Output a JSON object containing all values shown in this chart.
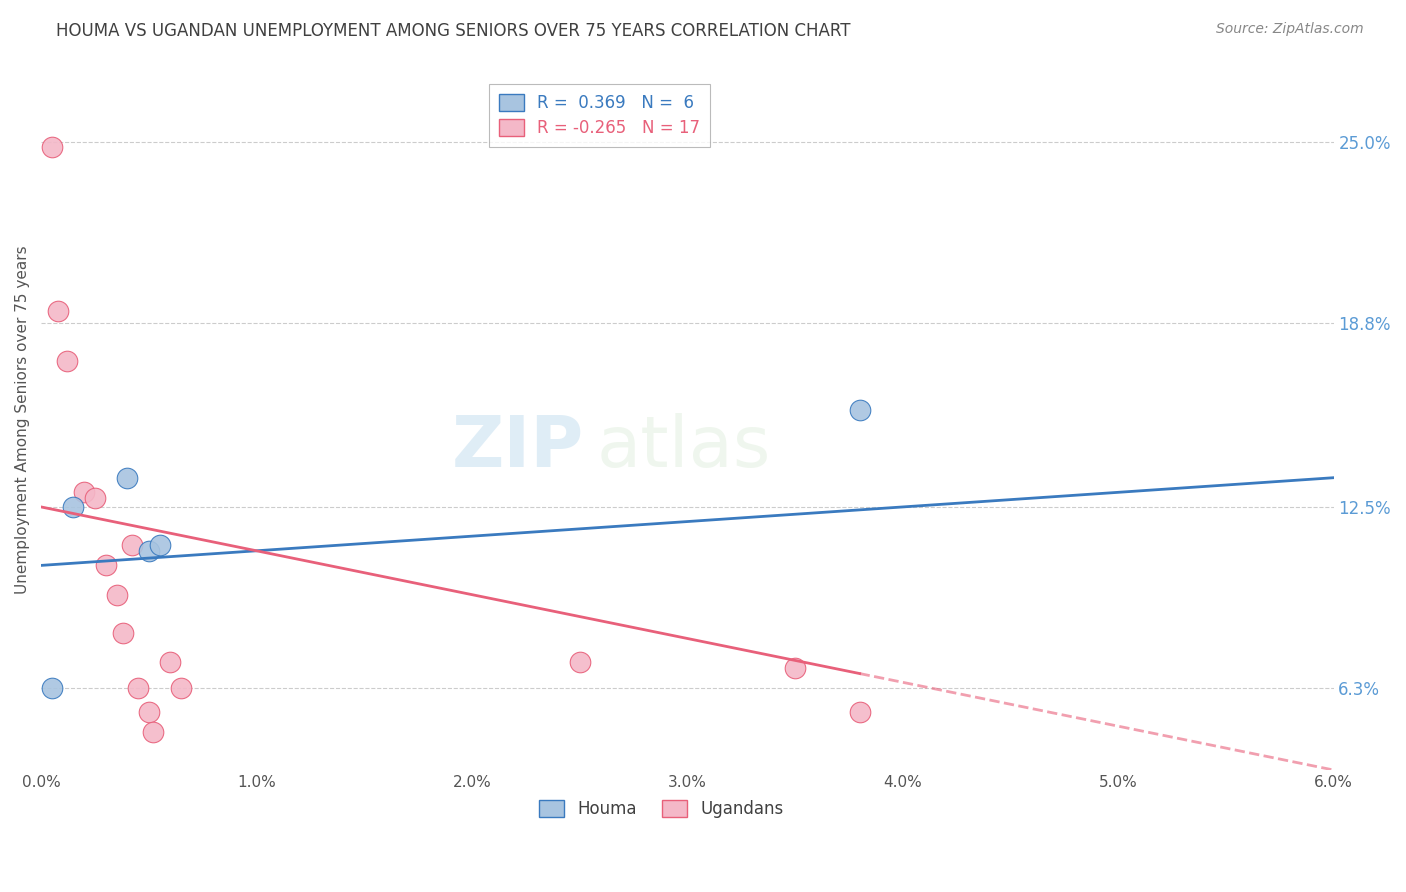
{
  "title": "HOUMA VS UGANDAN UNEMPLOYMENT AMONG SENIORS OVER 75 YEARS CORRELATION CHART",
  "source": "Source: ZipAtlas.com",
  "ylabel": "Unemployment Among Seniors over 75 years",
  "xlabel_ticks": [
    "0.0%",
    "1.0%",
    "2.0%",
    "3.0%",
    "4.0%",
    "5.0%",
    "6.0%"
  ],
  "xlabel_vals": [
    0.0,
    1.0,
    2.0,
    3.0,
    4.0,
    5.0,
    6.0
  ],
  "ylabel_right_ticks": [
    "6.3%",
    "12.5%",
    "18.8%",
    "25.0%"
  ],
  "ylabel_right_vals": [
    6.3,
    12.5,
    18.8,
    25.0
  ],
  "xlim": [
    0.0,
    6.0
  ],
  "ylim": [
    3.5,
    27.5
  ],
  "houma_color": "#a8c4e0",
  "ugandan_color": "#f4b8c8",
  "houma_line_color": "#3a7abf",
  "ugandan_line_color": "#e8607a",
  "houma_label": "R =  0.369   N =  6",
  "ugandan_label": "R = -0.265   N = 17",
  "legend_houma": "Houma",
  "legend_ugandan": "Ugandans",
  "houma_x": [
    0.05,
    0.15,
    0.4,
    0.5,
    0.55,
    3.8
  ],
  "houma_y": [
    6.3,
    12.5,
    13.5,
    11.0,
    11.2,
    15.8
  ],
  "ugandan_x": [
    0.05,
    0.08,
    0.12,
    0.2,
    0.25,
    0.3,
    0.35,
    0.38,
    0.42,
    0.45,
    0.5,
    0.52,
    0.6,
    0.65,
    2.5,
    3.5,
    3.8
  ],
  "ugandan_y": [
    24.8,
    19.2,
    17.5,
    13.0,
    12.8,
    10.5,
    9.5,
    8.2,
    11.2,
    6.3,
    5.5,
    4.8,
    7.2,
    6.3,
    7.2,
    7.0,
    5.5
  ],
  "houma_line_x0": 0.0,
  "houma_line_y0": 10.5,
  "houma_line_x1": 6.0,
  "houma_line_y1": 13.5,
  "ugandan_line_x0": 0.0,
  "ugandan_line_y0": 12.5,
  "ugandan_line_x1": 6.0,
  "ugandan_line_y1": 3.5,
  "ugandan_solid_end_x": 3.8,
  "watermark_zip": "ZIP",
  "watermark_atlas": "atlas",
  "background_color": "#ffffff",
  "grid_color": "#cccccc",
  "right_axis_color": "#5b9bd5",
  "title_color": "#404040",
  "source_color": "#888888"
}
